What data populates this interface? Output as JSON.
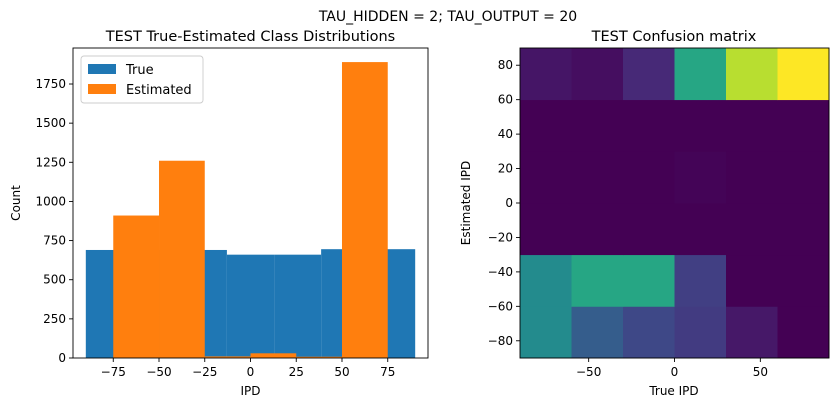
{
  "suptitle": "TAU_HIDDEN = 2; TAU_OUTPUT = 20",
  "chart_data": [
    {
      "type": "bar",
      "title": "TEST True-Estimated Class Distributions",
      "xlabel": "IPD",
      "ylabel": "Count",
      "xlim": [
        -97,
        97
      ],
      "ylim": [
        0,
        1980
      ],
      "xticks": [
        -75,
        -50,
        -25,
        0,
        25,
        50,
        75
      ],
      "xtick_labels": [
        "−75",
        "−50",
        "−25",
        "0",
        "25",
        "50",
        "75"
      ],
      "yticks": [
        0,
        250,
        500,
        750,
        1000,
        1250,
        1500,
        1750
      ],
      "ytick_labels": [
        "0",
        "250",
        "500",
        "750",
        "1000",
        "1250",
        "1500",
        "1750"
      ],
      "legend_position": "top-left",
      "series": [
        {
          "name": "True",
          "color": "#1f77b4",
          "bins": [
            {
              "x0": -90,
              "x1": -64.3,
              "value": 690
            },
            {
              "x0": -64.3,
              "x1": -38.6,
              "value": 690
            },
            {
              "x0": -38.6,
              "x1": -12.9,
              "value": 690
            },
            {
              "x0": -12.9,
              "x1": 12.9,
              "value": 660
            },
            {
              "x0": 12.9,
              "x1": 38.6,
              "value": 660
            },
            {
              "x0": 38.6,
              "x1": 64.3,
              "value": 695
            },
            {
              "x0": 64.3,
              "x1": 90,
              "value": 695
            }
          ]
        },
        {
          "name": "Estimated",
          "color": "#ff7f0e",
          "bins": [
            {
              "x0": -75,
              "x1": -50,
              "value": 910
            },
            {
              "x0": -50,
              "x1": -25,
              "value": 1260
            },
            {
              "x0": -25,
              "x1": 0,
              "value": 10
            },
            {
              "x0": 0,
              "x1": 25,
              "value": 30
            },
            {
              "x0": 25,
              "x1": 50,
              "value": 8
            },
            {
              "x0": 50,
              "x1": 75,
              "value": 1890
            }
          ]
        }
      ]
    },
    {
      "type": "heatmap",
      "title": "TEST Confusion matrix",
      "xlabel": "True IPD",
      "ylabel": "Estimated IPD",
      "xlim": [
        -90,
        90
      ],
      "ylim": [
        -90,
        90
      ],
      "xticks": [
        -50,
        0,
        50
      ],
      "xtick_labels": [
        "−50",
        "0",
        "50"
      ],
      "yticks": [
        -80,
        -60,
        -40,
        -20,
        0,
        20,
        40,
        60,
        80
      ],
      "ytick_labels": [
        "−80",
        "−60",
        "−40",
        "−20",
        "0",
        "20",
        "40",
        "60",
        "80"
      ],
      "x_edges": [
        -90,
        -60,
        -30,
        0,
        30,
        60,
        90
      ],
      "y_edges": [
        -90,
        -60,
        -30,
        0,
        30,
        60,
        90
      ],
      "values": [
        [
          0.48,
          0.3,
          0.22,
          0.18,
          0.07,
          0.0
        ],
        [
          0.48,
          0.6,
          0.6,
          0.19,
          0.0,
          0.0
        ],
        [
          0.0,
          0.0,
          0.0,
          0.0,
          0.0,
          0.0
        ],
        [
          0.0,
          0.0,
          0.0,
          0.01,
          0.0,
          0.0
        ],
        [
          0.0,
          0.0,
          0.0,
          0.0,
          0.0,
          0.0
        ],
        [
          0.06,
          0.04,
          0.12,
          0.6,
          0.9,
          1.0
        ]
      ],
      "colormap": "viridis"
    }
  ]
}
